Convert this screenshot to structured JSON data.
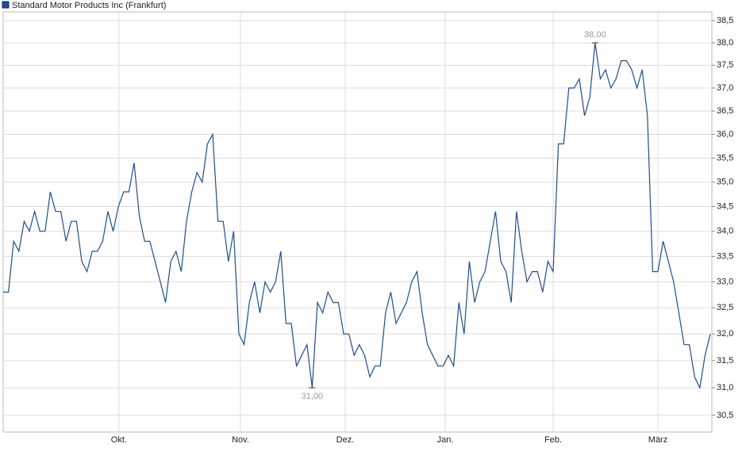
{
  "chart_data": {
    "type": "line",
    "log_scale": true,
    "grid": true,
    "legend": "top-left",
    "series": [
      {
        "name": "Standard Motor Products Inc (Frankfurt)",
        "color": "#1f4e8c",
        "values": [
          32.8,
          32.8,
          33.8,
          33.6,
          34.2,
          34.0,
          34.4,
          34.0,
          34.0,
          34.8,
          34.4,
          34.4,
          33.8,
          34.2,
          34.2,
          33.4,
          33.2,
          33.6,
          33.6,
          33.8,
          34.4,
          34.0,
          34.5,
          34.8,
          34.8,
          35.4,
          34.3,
          33.8,
          33.8,
          33.4,
          33.0,
          32.6,
          33.4,
          33.6,
          33.2,
          34.2,
          34.8,
          35.2,
          35.0,
          35.8,
          36.0,
          34.2,
          34.2,
          33.4,
          34.0,
          32.0,
          31.8,
          32.6,
          33.0,
          32.4,
          33.0,
          32.8,
          33.0,
          33.6,
          32.2,
          32.2,
          31.4,
          31.6,
          31.8,
          31.0,
          32.6,
          32.4,
          32.8,
          32.6,
          32.6,
          32.0,
          32.0,
          31.6,
          31.8,
          31.6,
          31.2,
          31.4,
          31.4,
          32.4,
          32.8,
          32.2,
          32.4,
          32.6,
          33.0,
          33.2,
          32.4,
          31.8,
          31.6,
          31.4,
          31.4,
          31.6,
          31.4,
          32.6,
          32.0,
          33.4,
          32.6,
          33.0,
          33.2,
          33.8,
          34.4,
          33.4,
          33.2,
          32.6,
          34.4,
          33.6,
          33.0,
          33.2,
          33.2,
          32.8,
          33.4,
          33.2,
          35.8,
          35.8,
          37.0,
          37.0,
          37.2,
          36.4,
          36.8,
          38.0,
          37.2,
          37.4,
          37.0,
          37.2,
          37.6,
          37.6,
          37.4,
          37.0,
          37.4,
          36.4,
          33.2,
          33.2,
          33.8,
          33.4,
          33.0,
          32.4,
          31.8,
          31.8,
          31.2,
          31.0,
          31.6,
          32.0
        ]
      }
    ],
    "annotations": [
      {
        "label": "38,00",
        "value": 38.0
      },
      {
        "label": "31,00",
        "value": 31.0
      }
    ],
    "xlim": [
      0,
      135.3
    ],
    "xticks": [
      {
        "value": 22.1,
        "label": "Okt."
      },
      {
        "value": 45.3,
        "label": "Nov."
      },
      {
        "value": 65.3,
        "label": "Dez."
      },
      {
        "value": 84.4,
        "label": "Jan."
      },
      {
        "value": 105,
        "label": "Feb."
      },
      {
        "value": 125,
        "label": "März"
      }
    ],
    "ylim": [
      30.2,
      38.7
    ],
    "yticks": [
      {
        "value": 30.5,
        "label": "30,5"
      },
      {
        "value": 31.0,
        "label": "31,0"
      },
      {
        "value": 31.5,
        "label": "31,5"
      },
      {
        "value": 32.0,
        "label": "32,0"
      },
      {
        "value": 32.5,
        "label": "32,5"
      },
      {
        "value": 33.0,
        "label": "33,0"
      },
      {
        "value": 33.5,
        "label": "33,5"
      },
      {
        "value": 34.0,
        "label": "34,0"
      },
      {
        "value": 34.5,
        "label": "34,5"
      },
      {
        "value": 35.0,
        "label": "35,0"
      },
      {
        "value": 35.5,
        "label": "35,5"
      },
      {
        "value": 36.0,
        "label": "36,0"
      },
      {
        "value": 36.5,
        "label": "36,5"
      },
      {
        "value": 37.0,
        "label": "37,0"
      },
      {
        "value": 37.5,
        "label": "37,5"
      },
      {
        "value": 38.0,
        "label": "38,0"
      },
      {
        "value": 38.5,
        "label": "38,5"
      }
    ]
  }
}
